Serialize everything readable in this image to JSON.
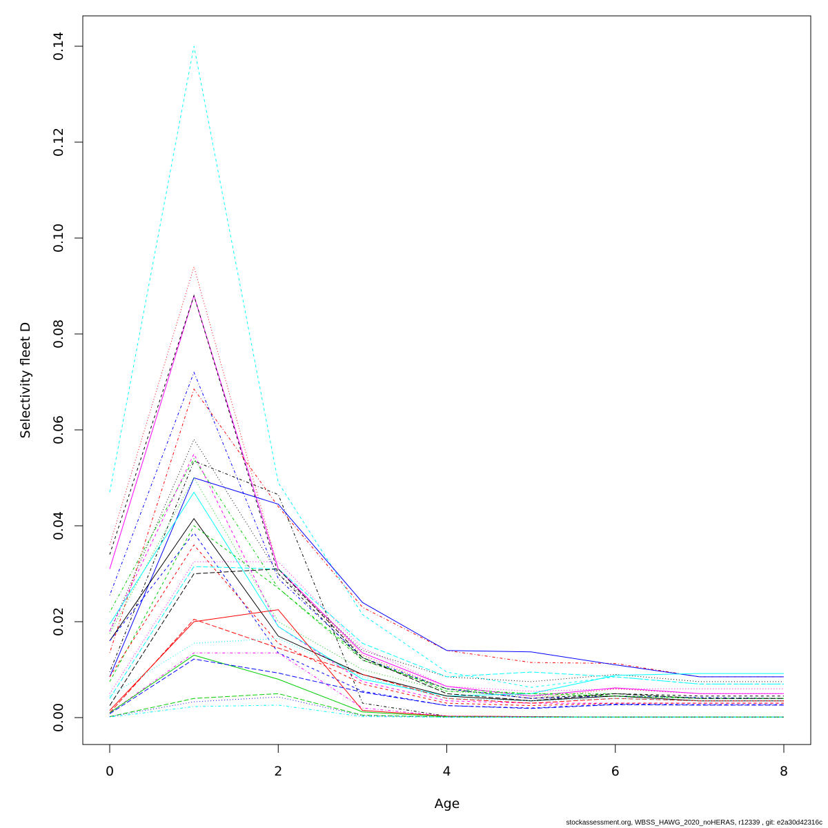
{
  "chart_data": {
    "type": "line",
    "title": "",
    "xlabel": "Age",
    "ylabel": "Selectivity fleet D",
    "x": [
      0,
      1,
      2,
      3,
      4,
      5,
      6,
      7,
      8
    ],
    "xlim": [
      -0.32,
      8.32
    ],
    "ylim": [
      -0.0056,
      0.1456
    ],
    "xticks": [
      "0",
      "2",
      "4",
      "6",
      "8"
    ],
    "yticks": [
      "0.00",
      "0.02",
      "0.04",
      "0.06",
      "0.08",
      "0.10",
      "0.12",
      "0.14"
    ],
    "grid": false,
    "legend": "none",
    "series": [
      {
        "color": "#00FFFF",
        "lty": 2,
        "values": [
          0.047,
          0.14,
          0.049,
          0.0215,
          0.0095,
          0.0063,
          0.0085,
          0.007,
          0.007
        ]
      },
      {
        "color": "#FF0000",
        "lty": 3,
        "values": [
          0.036,
          0.094,
          0.031,
          0.013,
          0.006,
          0.004,
          0.006,
          0.005,
          0.005
        ]
      },
      {
        "color": "#FF00FF",
        "lty": 1,
        "values": [
          0.031,
          0.088,
          0.031,
          0.0135,
          0.0065,
          0.0045,
          0.0062,
          0.005,
          0.005
        ]
      },
      {
        "color": "#000000",
        "lty": 2,
        "values": [
          0.034,
          0.088,
          0.03,
          0.012,
          0.006,
          0.004,
          0.005,
          0.0045,
          0.0045
        ]
      },
      {
        "color": "#0000FF",
        "lty": 4,
        "values": [
          0.0255,
          0.072,
          0.029,
          0.0125,
          0.006,
          0.004,
          0.0045,
          0.0042,
          0.004
        ]
      },
      {
        "color": "#FF0000",
        "lty": 4,
        "values": [
          0.0135,
          0.0685,
          0.044,
          0.023,
          0.014,
          0.0115,
          0.0113,
          0.0085,
          0.0085
        ]
      },
      {
        "color": "#000000",
        "lty": 3,
        "values": [
          0.018,
          0.058,
          0.03,
          0.014,
          0.0085,
          0.0075,
          0.009,
          0.0075,
          0.0075
        ]
      },
      {
        "color": "#00CD00",
        "lty": 4,
        "values": [
          0.022,
          0.054,
          0.027,
          0.012,
          0.006,
          0.005,
          0.005,
          0.004,
          0.004
        ]
      },
      {
        "color": "#FF00FF",
        "lty": 2,
        "values": [
          0.018,
          0.055,
          0.019,
          0.0075,
          0.0035,
          0.003,
          0.003,
          0.003,
          0.003
        ]
      },
      {
        "color": "#000000",
        "lty": 4,
        "values": [
          0.0095,
          0.0535,
          0.0465,
          0.003,
          0.0003,
          0.0002,
          0.0001,
          0.0001,
          0.0001
        ]
      },
      {
        "color": "#0000FF",
        "lty": 1,
        "values": [
          0.0085,
          0.05,
          0.0445,
          0.024,
          0.014,
          0.0137,
          0.011,
          0.0085,
          0.0085
        ]
      },
      {
        "color": "#00CD00",
        "lty": 3,
        "values": [
          0.0175,
          0.05,
          0.02,
          0.01,
          0.0055,
          0.0045,
          0.0045,
          0.004,
          0.004
        ]
      },
      {
        "color": "#00FFFF",
        "lty": 1,
        "values": [
          0.0195,
          0.047,
          0.019,
          0.008,
          0.0045,
          0.005,
          0.0088,
          0.0092,
          0.0092
        ]
      },
      {
        "color": "#000000",
        "lty": 1,
        "values": [
          0.016,
          0.0415,
          0.017,
          0.009,
          0.0045,
          0.0035,
          0.0045,
          0.0035,
          0.0035
        ]
      },
      {
        "color": "#00CD00",
        "lty": 2,
        "values": [
          0.0075,
          0.04,
          0.027,
          0.0125,
          0.0055,
          0.005,
          0.0045,
          0.004,
          0.004
        ]
      },
      {
        "color": "#0000FF",
        "lty": 2,
        "values": [
          0.016,
          0.0385,
          0.0135,
          0.0055,
          0.0025,
          0.002,
          0.0028,
          0.0027,
          0.0027
        ]
      },
      {
        "color": "#FF0000",
        "lty": 2,
        "values": [
          0.0085,
          0.036,
          0.0155,
          0.007,
          0.003,
          0.0025,
          0.003,
          0.003,
          0.003
        ]
      },
      {
        "color": "#FF00FF",
        "lty": 3,
        "values": [
          0.005,
          0.0325,
          0.0325,
          0.0145,
          0.0065,
          0.0055,
          0.006,
          0.006,
          0.006
        ]
      },
      {
        "color": "#00FFFF",
        "lty": 5,
        "values": [
          0.004,
          0.0315,
          0.031,
          0.0155,
          0.0085,
          0.0095,
          0.0085,
          0.007,
          0.007
        ]
      },
      {
        "color": "#000000",
        "lty": 5,
        "values": [
          0.0025,
          0.03,
          0.031,
          0.0125,
          0.005,
          0.0035,
          0.005,
          0.004,
          0.004
        ]
      },
      {
        "color": "#FF0000",
        "lty": 1,
        "values": [
          0.0015,
          0.02,
          0.0225,
          0.0015,
          0.0003,
          0.0002,
          0.0001,
          0.0001,
          0.0001
        ]
      },
      {
        "color": "#FF0000",
        "lty": 5,
        "values": [
          0.001,
          0.0205,
          0.0145,
          0.009,
          0.004,
          0.003,
          0.004,
          0.0035,
          0.0035
        ]
      },
      {
        "color": "#00FFFF",
        "lty": 3,
        "values": [
          0.0045,
          0.0155,
          0.0165,
          0.0085,
          0.004,
          0.0035,
          0.004,
          0.0035,
          0.0035
        ]
      },
      {
        "color": "#FF00FF",
        "lty": 4,
        "values": [
          0.001,
          0.0135,
          0.0135,
          0.002,
          0.0003,
          0.0002,
          0.0001,
          0.0001,
          0.0001
        ]
      },
      {
        "color": "#00CD00",
        "lty": 1,
        "values": [
          0.001,
          0.013,
          0.008,
          0.0012,
          0.0002,
          0.0001,
          0.0001,
          0.0001,
          0.0001
        ]
      },
      {
        "color": "#0000FF",
        "lty": 5,
        "values": [
          0.0008,
          0.0122,
          0.0093,
          0.0053,
          0.0025,
          0.0019,
          0.0027,
          0.0026,
          0.0026
        ]
      },
      {
        "color": "#00CD00",
        "lty": 5,
        "values": [
          0.0002,
          0.004,
          0.005,
          0.0005,
          0.0001,
          0.0001,
          0.0001,
          0.0001,
          0.0001
        ]
      },
      {
        "color": "#0000FF",
        "lty": 3,
        "values": [
          0.0002,
          0.0033,
          0.0043,
          0.0004,
          0.0001,
          0.0001,
          0.0001,
          0.0001,
          0.0001
        ]
      },
      {
        "color": "#00FFFF",
        "lty": 4,
        "values": [
          0.0001,
          0.0023,
          0.0026,
          0.0002,
          0.0001,
          0.0001,
          0.0001,
          0.0001,
          0.0001
        ]
      }
    ]
  },
  "footer": "stockassessment.org, WBSS_HAWG_2020_noHERAS, r12339 , git: e2a30d42316c"
}
